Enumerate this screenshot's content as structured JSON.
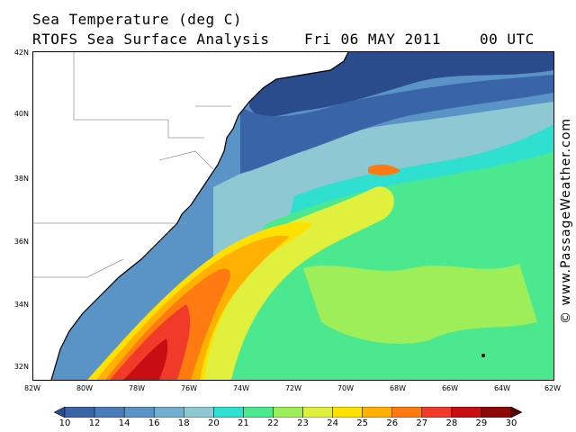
{
  "header": {
    "title": "Sea Temperature (deg C)",
    "subtitle": "RTOFS Sea Surface Analysis",
    "date": "Fri 06 MAY 2011",
    "time": "00 UTC"
  },
  "credit": "© www.PassageWeather.com",
  "axes": {
    "lat_labels": [
      "42N",
      "40N",
      "38N",
      "36N",
      "34N",
      "32N"
    ],
    "lon_labels": [
      "82W",
      "80W",
      "78W",
      "76W",
      "74W",
      "72W",
      "70W",
      "68W",
      "66W",
      "64W",
      "62W"
    ]
  },
  "colorbar": {
    "labels": [
      "10",
      "12",
      "14",
      "16",
      "18",
      "20",
      "21",
      "22",
      "23",
      "24",
      "25",
      "26",
      "27",
      "28",
      "29",
      "30"
    ],
    "colors": [
      "#2a4b8c",
      "#3a64a8",
      "#4a7cbb",
      "#5a93c6",
      "#72aed0",
      "#8ec8d2",
      "#2fe0d0",
      "#4be890",
      "#9eee5a",
      "#e0f03c",
      "#ffe100",
      "#ffb000",
      "#ff7a10",
      "#f23a2a",
      "#c80e12",
      "#8e0a0a",
      "#5a0000"
    ]
  },
  "map_colors": {
    "deep": "#2a4b8c",
    "cold": "#3a64a8",
    "cool": "#5a93c6",
    "mild": "#8ec8d2",
    "cyan": "#2fe0d0",
    "green": "#4be890",
    "lime": "#9eee5a",
    "yellow": "#e0f03c",
    "gold": "#ffe100",
    "orange": "#ffb000",
    "dorange": "#ff7a10",
    "red": "#f23a2a",
    "dred": "#c80e12",
    "land": "#ffffff"
  }
}
